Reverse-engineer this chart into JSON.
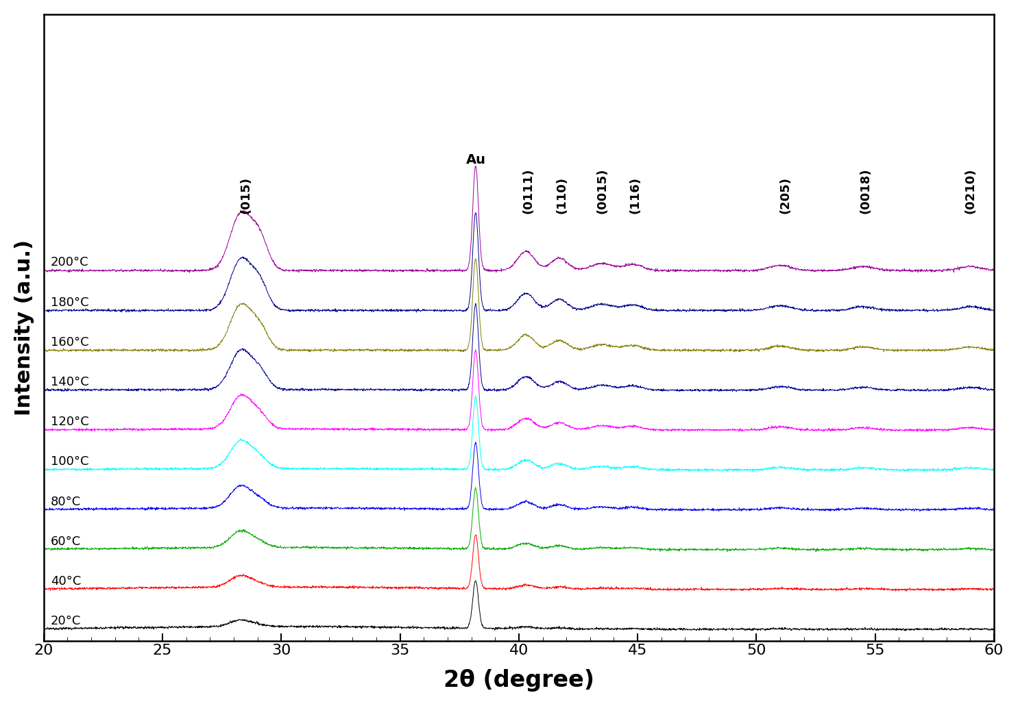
{
  "x_min": 20,
  "x_max": 60,
  "x_label": "2θ (degree)",
  "y_label": "Intensity (a.u.)",
  "temperatures": [
    "20°C",
    "40°C",
    "60°C",
    "80°C",
    "100°C",
    "120°C",
    "140°C",
    "160°C",
    "180°C",
    "200°C"
  ],
  "temp_colors": [
    "black",
    "red",
    "#00aa00",
    "#0000ee",
    "cyan",
    "magenta",
    "#000099",
    "#808000",
    "#00008B",
    "#990099"
  ],
  "peak_annotations": [
    {
      "text": "(015)",
      "x": 28.5,
      "rotation": 90
    },
    {
      "text": "Au",
      "x": 38.2,
      "rotation": 0
    },
    {
      "text": "(0111)",
      "x": 40.4,
      "rotation": 90
    },
    {
      "text": "(110)",
      "x": 41.8,
      "rotation": 90
    },
    {
      "text": "(0015)",
      "x": 43.5,
      "rotation": 90
    },
    {
      "text": "(116)",
      "x": 44.9,
      "rotation": 90
    },
    {
      "text": "(205)",
      "x": 51.2,
      "rotation": 90
    },
    {
      "text": "(0018)",
      "x": 54.6,
      "rotation": 90
    },
    {
      "text": "(0210)",
      "x": 59.0,
      "rotation": 90
    }
  ],
  "xticks": [
    20,
    25,
    30,
    35,
    40,
    45,
    50,
    55,
    60
  ],
  "figsize": [
    14.85,
    10.31
  ],
  "dpi": 100
}
